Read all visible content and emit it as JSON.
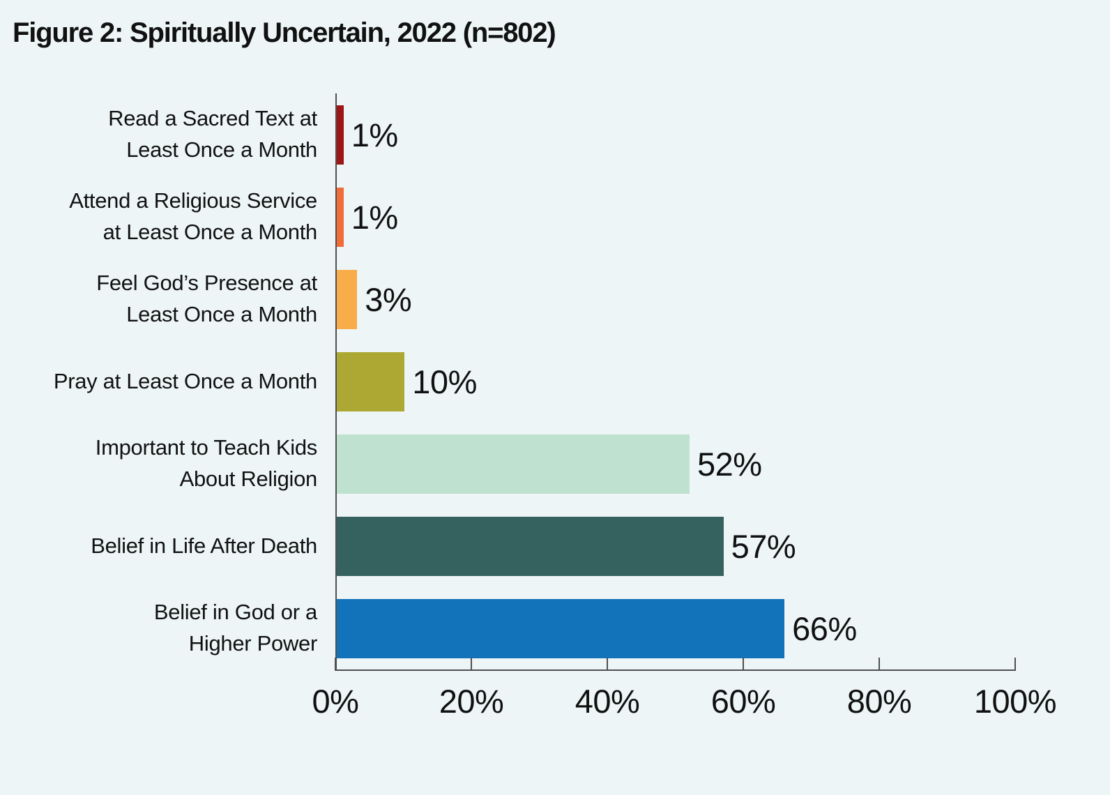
{
  "title": "Figure 2: Spiritually Uncertain, 2022 (n=802)",
  "colors": {
    "background": "#edf5f6",
    "axis": "#4f4f4f",
    "text": "#111111"
  },
  "chart_data": {
    "type": "bar",
    "orientation": "horizontal",
    "title": "Figure 2: Spiritually Uncertain, 2022 (n=802)",
    "xlabel": "",
    "ylabel": "",
    "xlim": [
      0,
      100
    ],
    "grid": false,
    "legend": "none",
    "x_tick_values": [
      0,
      20,
      40,
      60,
      80,
      100
    ],
    "x_tick_labels": [
      "0%",
      "20%",
      "40%",
      "60%",
      "80%",
      "100%"
    ],
    "categories": [
      "Read a Sacred Text at\nLeast Once a Month",
      "Attend a Religious Service\nat Least Once a Month",
      "Feel God’s Presence at\nLeast Once a Month",
      "Pray at Least Once a Month",
      "Important to Teach Kids\nAbout Religion",
      "Belief in Life After Death",
      "Belief in God or a\nHigher Power"
    ],
    "values": [
      1,
      1,
      3,
      10,
      52,
      57,
      66
    ],
    "value_labels": [
      "1%",
      "1%",
      "3%",
      "10%",
      "52%",
      "57%",
      "66%"
    ],
    "bar_colors": [
      "#9e1515",
      "#f16c38",
      "#f8ad4a",
      "#aca833",
      "#bfe1cf",
      "#35615f",
      "#1273bb"
    ]
  }
}
